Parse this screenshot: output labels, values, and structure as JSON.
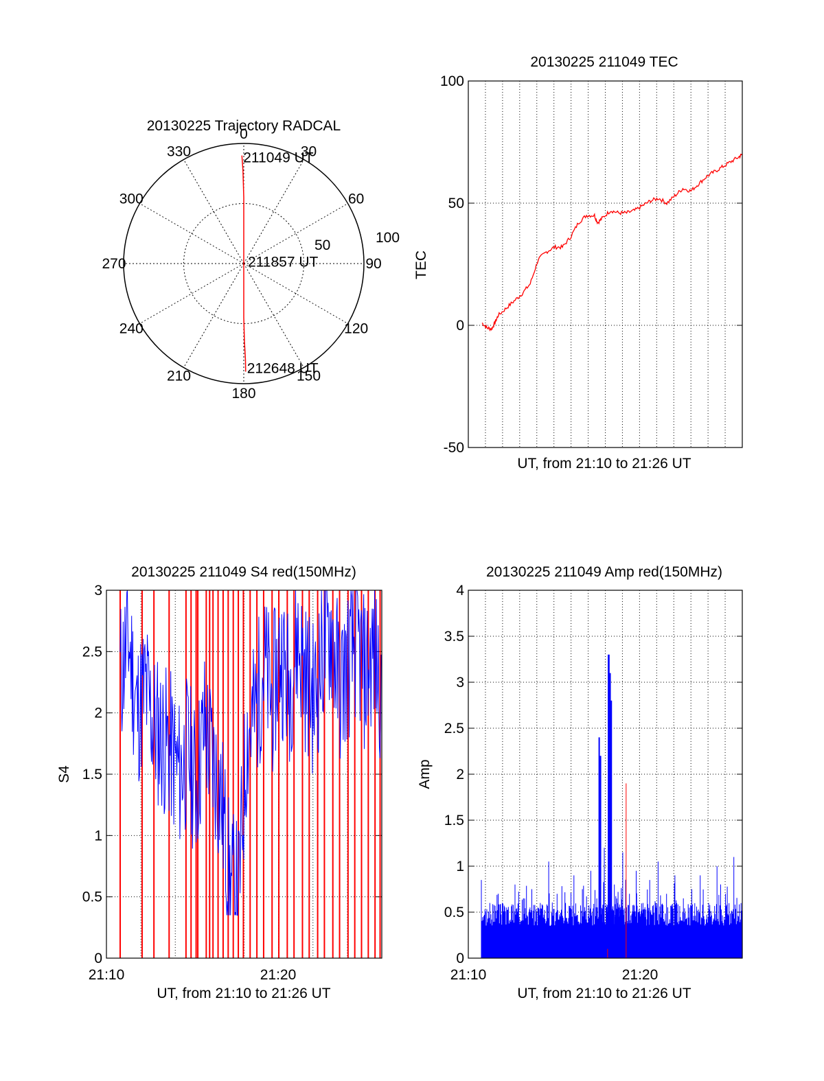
{
  "colors": {
    "red": "#ff0000",
    "blue": "#0000ff",
    "axis": "#000000",
    "grid": "#000000"
  },
  "chart_data": [
    {
      "type": "polar",
      "title": "20130225 Trajectory RADCAL",
      "angle_ticks": [
        "0",
        "30",
        "60",
        "90",
        "120",
        "150",
        "180",
        "210",
        "240",
        "270",
        "300",
        "330"
      ],
      "radius_ticks": [
        "50",
        "100"
      ],
      "rlim": [
        0,
        100
      ],
      "grid": true,
      "annotations": [
        "211049 UT",
        "211857 UT",
        "212648 UT"
      ],
      "series": [
        {
          "color": "red",
          "points": [
            [
              -1,
              90
            ],
            [
              -0.5,
              78
            ],
            [
              0,
              55
            ],
            [
              0,
              25
            ],
            [
              0,
              2
            ],
            [
              180,
              20
            ],
            [
              180,
              45
            ],
            [
              179.5,
              65
            ],
            [
              179,
              80
            ],
            [
              179,
              90
            ]
          ]
        }
      ]
    },
    {
      "type": "line",
      "title": "20130225 211049 TEC",
      "ylabel": "TEC",
      "xlabel": "UT, from 21:10 to 21:26 UT",
      "ylim": [
        -50,
        100
      ],
      "yticks": [
        "-50",
        "0",
        "50",
        "100"
      ],
      "xlim": [
        0,
        16.2
      ],
      "grid": true,
      "series": [
        {
          "color": "red",
          "x": [
            0.0,
            0.3,
            0.6,
            0.8,
            1.0,
            1.5,
            2.0,
            2.5,
            3.0,
            3.5,
            4.0,
            4.5,
            5.0,
            5.5,
            6.0,
            6.5,
            7.0,
            7.2,
            7.5,
            8.0,
            8.5,
            9.0,
            9.5,
            10.0,
            10.5,
            11.0,
            11.5,
            12.0,
            12.5,
            13.0,
            13.5,
            14.0,
            14.5,
            15.0,
            15.5,
            16.0,
            16.2
          ],
          "y": [
            1,
            -1,
            -1.5,
            1,
            4,
            7,
            10,
            13,
            17,
            27,
            30,
            32,
            32,
            36,
            42,
            45,
            45,
            42,
            44,
            47,
            46,
            46,
            47,
            49,
            51,
            52,
            50,
            53,
            56,
            55,
            58,
            61,
            63,
            65,
            67,
            69,
            70
          ]
        }
      ]
    },
    {
      "type": "line",
      "title": "20130225 211049 S4 red(150MHz)",
      "ylabel": "S4",
      "xlabel": "UT, from 21:10 to 21:26 UT",
      "ylim": [
        0,
        3
      ],
      "yticks": [
        "0",
        "0.5",
        "1",
        "1.5",
        "2",
        "2.5",
        "3"
      ],
      "xticks": [
        "21:10",
        "21:20"
      ],
      "xlim": [
        0,
        15.5
      ],
      "grid": true,
      "series": [
        {
          "color": "blue",
          "x": [
            0.0,
            0.5,
            1.0,
            1.5,
            2.0,
            2.5,
            3.0,
            3.5,
            4.0,
            4.5,
            5.0,
            5.5,
            6.0,
            6.5,
            7.0,
            7.5,
            8.0,
            8.5,
            9.0,
            9.5,
            10.0,
            10.5,
            11.0,
            11.5,
            12.0,
            12.5,
            13.0,
            13.5,
            14.0,
            14.5,
            15.0,
            15.5
          ],
          "y": [
            2.3,
            2.6,
            2.0,
            2.2,
            1.9,
            1.8,
            1.7,
            1.5,
            1.7,
            1.4,
            1.9,
            1.6,
            1.3,
            0.6,
            0.5,
            1.8,
            2.0,
            2.4,
            2.1,
            2.5,
            2.2,
            2.6,
            2.3,
            2.1,
            2.5,
            2.7,
            2.2,
            2.4,
            2.6,
            2.3,
            2.5,
            2.2
          ]
        }
      ],
      "spikes": {
        "color": "red",
        "x": [
          0.0,
          1.3,
          2.0,
          2.9,
          3.9,
          4.2,
          4.5,
          4.6,
          5.1,
          5.3,
          5.5,
          5.8,
          6.1,
          6.4,
          6.7,
          7.0,
          7.3,
          7.7,
          8.1,
          8.5,
          9.0,
          9.4,
          9.9,
          10.3,
          10.8,
          11.2,
          11.7,
          12.1,
          12.6,
          13.0,
          13.5,
          13.9,
          14.3,
          14.7,
          15.1,
          15.4
        ],
        "from": 0,
        "to": 3
      }
    },
    {
      "type": "bar",
      "title": "20130225 211049 Amp red(150MHz)",
      "ylabel": "Amp",
      "xlabel": "UT, from 21:10 to 21:26 UT",
      "ylim": [
        0,
        4
      ],
      "yticks": [
        "0",
        "0.5",
        "1",
        "1.5",
        "2",
        "2.5",
        "3",
        "3.5",
        "4"
      ],
      "xticks": [
        "21:10",
        "21:20"
      ],
      "xlim": [
        0,
        15.5
      ],
      "grid": true,
      "series": [
        {
          "color": "blue",
          "x": [
            0.0,
            0.5,
            1.0,
            1.5,
            2.0,
            2.5,
            3.0,
            3.5,
            4.0,
            4.5,
            5.0,
            5.5,
            6.0,
            6.5,
            7.0,
            7.3,
            7.6,
            7.9,
            8.1,
            8.4,
            8.8,
            9.2,
            9.6,
            10.0,
            10.5,
            11.0,
            11.5,
            12.0,
            12.5,
            13.0,
            13.5,
            14.0,
            14.5,
            15.0,
            15.5
          ],
          "y": [
            0.85,
            0.6,
            0.7,
            0.55,
            0.8,
            0.65,
            0.75,
            0.6,
            1.05,
            0.7,
            0.6,
            0.9,
            0.75,
            0.95,
            2.4,
            1.2,
            3.3,
            0.8,
            0.6,
            1.15,
            0.7,
            0.95,
            0.6,
            0.85,
            1.05,
            0.7,
            0.9,
            0.65,
            0.75,
            0.9,
            0.6,
            1.0,
            0.7,
            1.1,
            0.6
          ]
        }
      ],
      "red_marks": [
        {
          "x": 8.6,
          "y": 1.9
        },
        {
          "x": 7.5,
          "y": 0.1
        }
      ]
    }
  ]
}
